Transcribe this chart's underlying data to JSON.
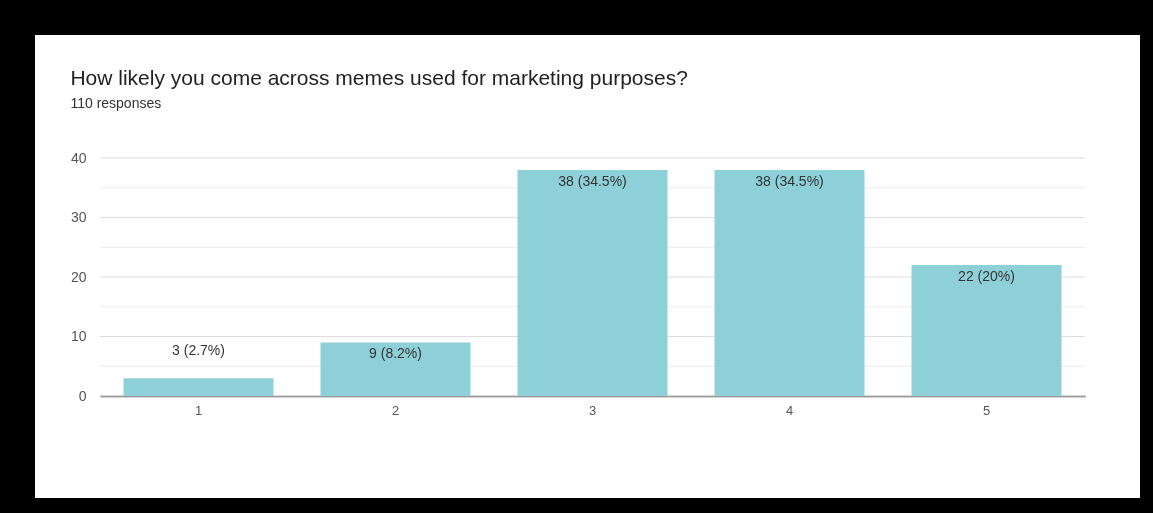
{
  "chart_data": {
    "type": "bar",
    "title": "How likely you come across memes used for marketing purposes?",
    "subtitle": "110 responses",
    "categories": [
      "1",
      "2",
      "3",
      "4",
      "5"
    ],
    "values": [
      3,
      9,
      38,
      38,
      22
    ],
    "value_labels": [
      "3 (2.7%)",
      "9 (8.2%)",
      "38 (34.5%)",
      "38 (34.5%)",
      "22 (20%)"
    ],
    "color": "#8dd0d8",
    "ylim": [
      0,
      40
    ],
    "yticks": [
      0,
      {
        "value": 5,
        "label": null
      },
      10,
      {
        "value": 15,
        "label": null
      },
      20,
      {
        "value": 25,
        "label": null
      },
      30,
      {
        "value": 35,
        "label": null
      },
      40
    ],
    "grid": "y"
  }
}
